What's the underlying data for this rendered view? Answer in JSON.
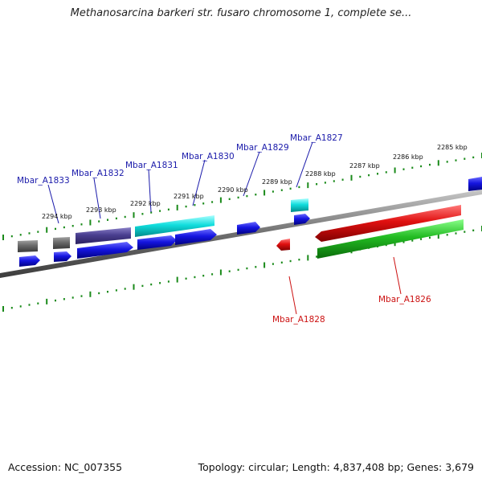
{
  "title": "Methanosarcina barkeri str. fusaro chromosome 1, complete se...",
  "footer": {
    "accession": "Accession: NC_007355",
    "summary": "Topology: circular; Length: 4,837,408 bp; Genes: 3,679"
  },
  "colors": {
    "upper_ruler": "#1a8a1a",
    "lower_ruler": "#1a8a1a",
    "backbone": "#7a7a7a",
    "forward_label": "#1a1aaa",
    "reverse_label": "#cc1111"
  },
  "kbp_ticks": [
    "2294 kbp",
    "2293 kbp",
    "2292 kbp",
    "2291 kbp",
    "2290 kbp",
    "2289 kbp",
    "2288 kbp",
    "2287 kbp",
    "2286 kbp",
    "2285 kbp"
  ],
  "gene_labels_forward": [
    "Mbar_A1833",
    "Mbar_A1832",
    "Mbar_A1831",
    "Mbar_A1830",
    "Mbar_A1829",
    "Mbar_A1827"
  ],
  "gene_labels_reverse": [
    "Mbar_A1828",
    "Mbar_A1826"
  ]
}
